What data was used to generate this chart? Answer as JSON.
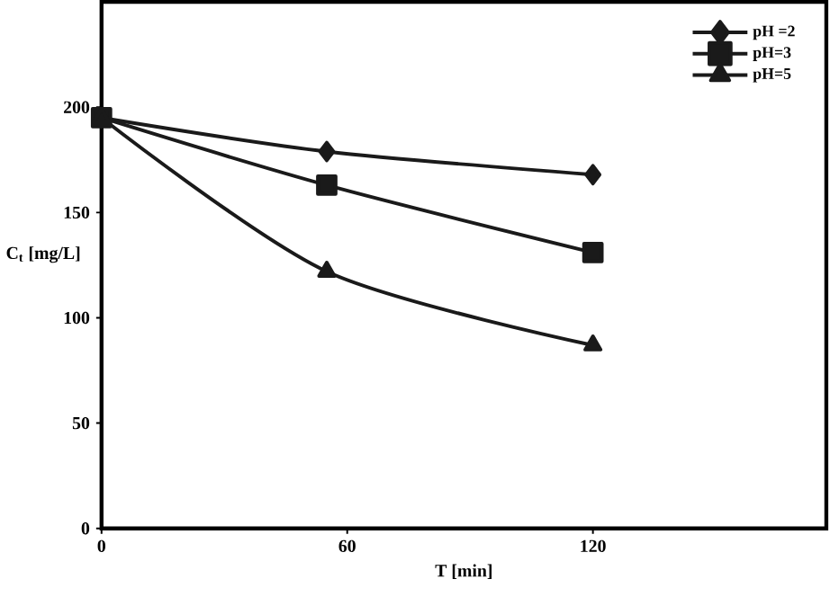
{
  "chart_data": {
    "type": "line",
    "xlabel": "T [min]",
    "ylabel": "C$_{t}$ [mg/L]",
    "x": [
      0,
      55,
      120
    ],
    "xlim": [
      0,
      177
    ],
    "ylim": [
      0,
      250
    ],
    "xticks": [
      0,
      60,
      120
    ],
    "yticks": [
      0,
      50,
      100,
      150,
      200
    ],
    "grid": false,
    "legend": "top right",
    "line_style": "solid",
    "series": [
      {
        "name": "pH =2",
        "color": "#1a1a1a",
        "marker": "diamond",
        "values": [
          195,
          179,
          168
        ]
      },
      {
        "name": "pH=3",
        "color": "#1a1a1a",
        "marker": "square",
        "values": [
          195,
          163,
          131
        ]
      },
      {
        "name": "pH=5",
        "color": "#1a1a1a",
        "marker": "triangle",
        "values": [
          195,
          122,
          87
        ]
      }
    ]
  }
}
